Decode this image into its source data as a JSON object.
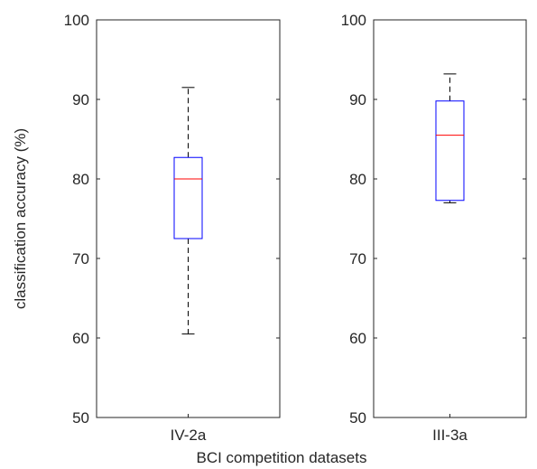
{
  "chart_data": {
    "type": "box",
    "xlabel": "BCI competition datasets",
    "ylabel": "classification accuracy (%)",
    "ylim": [
      50,
      100
    ],
    "yticks": [
      50,
      60,
      70,
      80,
      90,
      100
    ],
    "colors": {
      "box": "#0000ff",
      "median": "#ff0000",
      "whisker": "#000000",
      "axes": "#262626"
    },
    "panels": [
      {
        "category": "IV-2a",
        "stats": {
          "whisker_low": 60.5,
          "q1": 72.5,
          "median": 80.0,
          "q3": 82.7,
          "whisker_high": 91.5
        }
      },
      {
        "category": "III-3a",
        "stats": {
          "whisker_low": 77.0,
          "q1": 77.3,
          "median": 85.5,
          "q3": 89.8,
          "whisker_high": 93.2
        }
      }
    ]
  }
}
